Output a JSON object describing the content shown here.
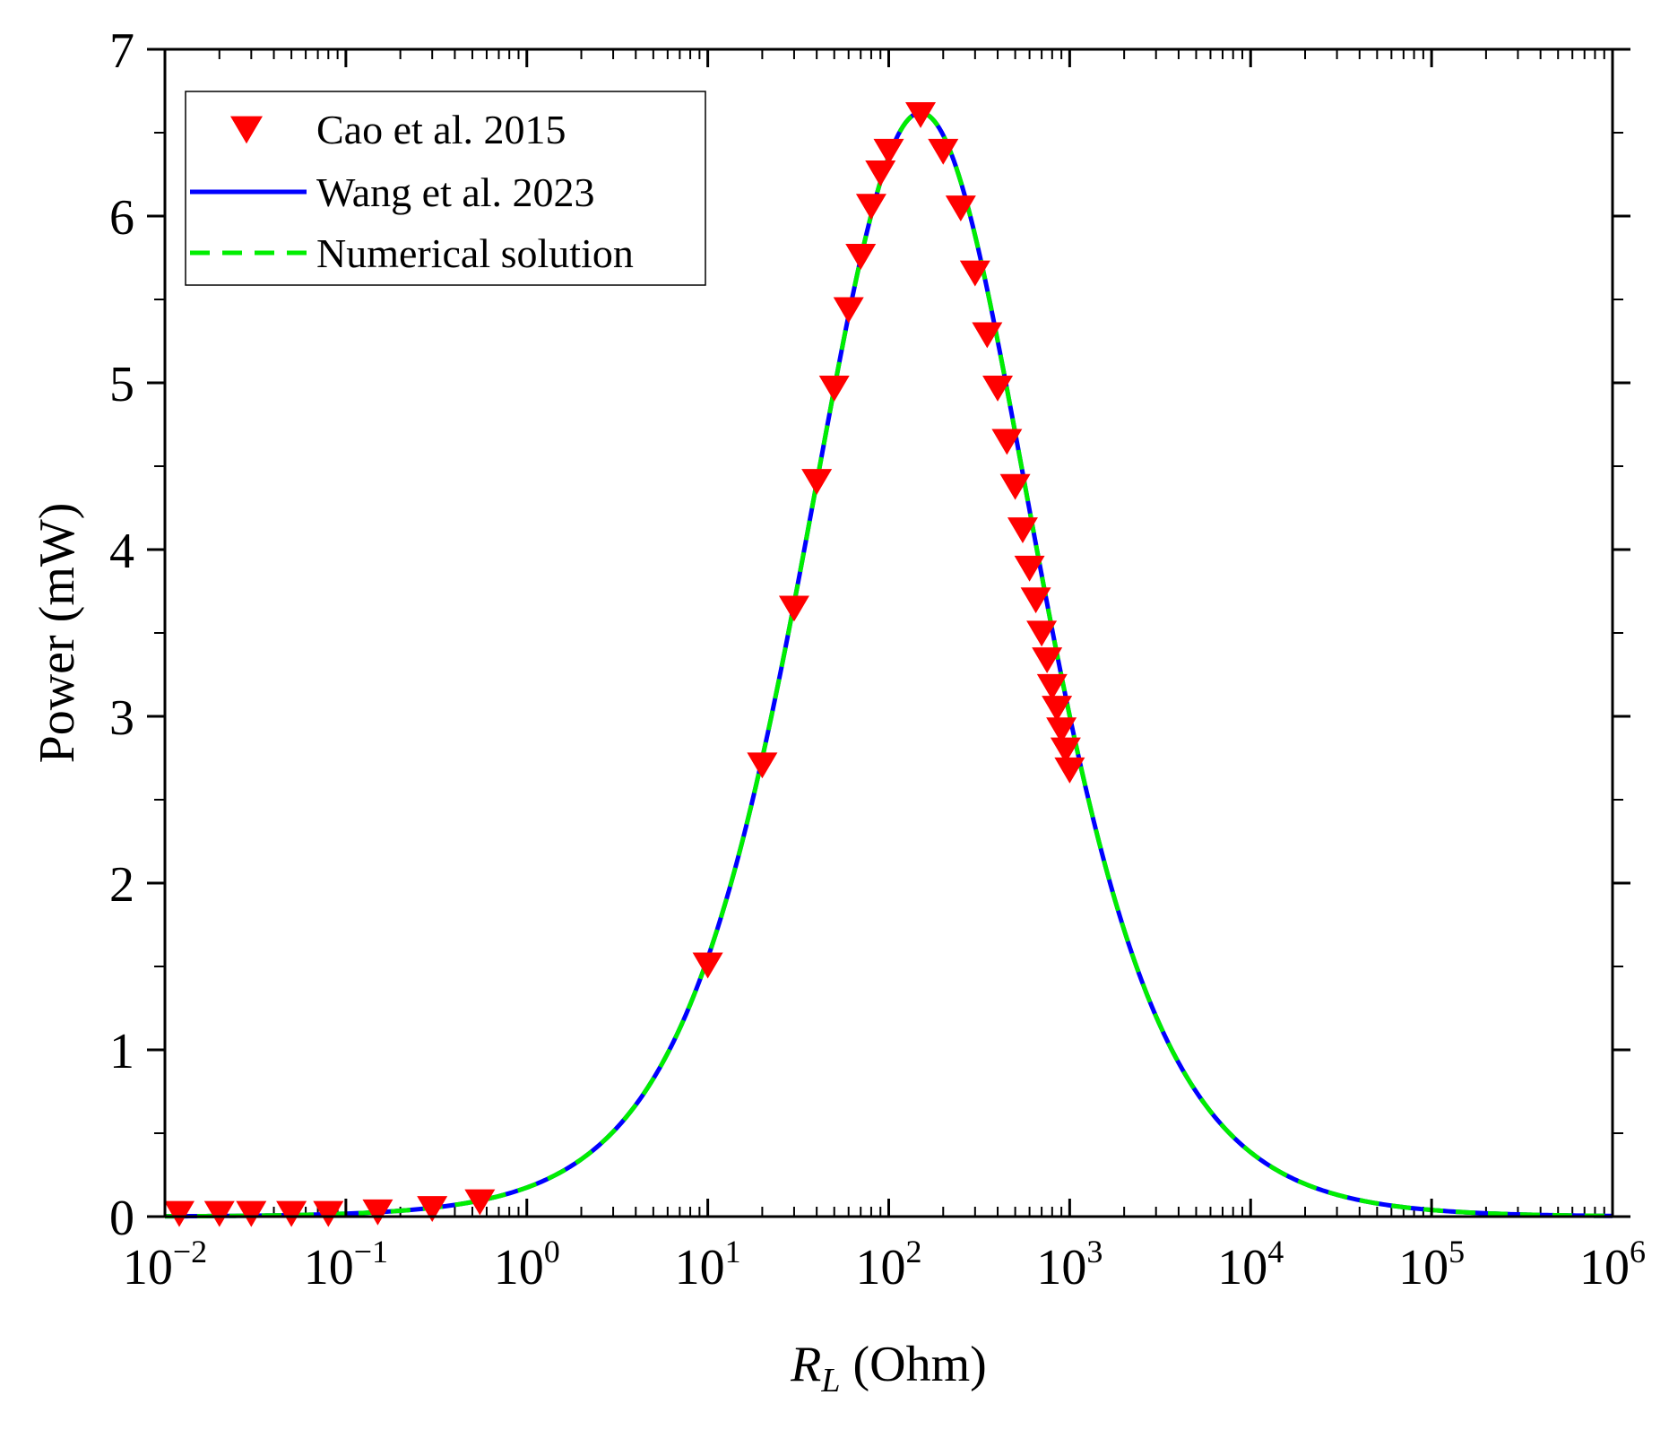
{
  "chart_data": {
    "type": "line",
    "xscale": "log",
    "xlim_exponents": [
      -2,
      6
    ],
    "ylim": [
      0,
      7
    ],
    "xlabel": {
      "main": "R",
      "subscript": "L",
      "rest": " (Ohm)"
    },
    "ylabel": "Power (mW)",
    "x_ticks": [
      {
        "base": "10",
        "exp": "−2",
        "value": 0.01
      },
      {
        "base": "10",
        "exp": "−1",
        "value": 0.1
      },
      {
        "base": "10",
        "exp": "0",
        "value": 1
      },
      {
        "base": "10",
        "exp": "1",
        "value": 10
      },
      {
        "base": "10",
        "exp": "2",
        "value": 100
      },
      {
        "base": "10",
        "exp": "3",
        "value": 1000
      },
      {
        "base": "10",
        "exp": "4",
        "value": 10000
      },
      {
        "base": "10",
        "exp": "5",
        "value": 100000
      },
      {
        "base": "10",
        "exp": "6",
        "value": 1000000
      }
    ],
    "y_ticks": [
      "0",
      "1",
      "2",
      "3",
      "4",
      "5",
      "6",
      "7"
    ],
    "legend_position": "top-left",
    "series": [
      {
        "name": "Cao et al. 2015",
        "kind": "markers",
        "marker": "triangle-down",
        "color": "#ff0000",
        "x": [
          0.012,
          0.02,
          0.03,
          0.05,
          0.08,
          0.15,
          0.3,
          0.55,
          10,
          20,
          30,
          40,
          50,
          60,
          70,
          80,
          90,
          100,
          150,
          200,
          250,
          300,
          350,
          400,
          450,
          500,
          550,
          600,
          650,
          700,
          750,
          800,
          850,
          900,
          950,
          1000
        ],
        "y": [
          0.02,
          0.02,
          0.02,
          0.02,
          0.02,
          0.03,
          0.05,
          0.09,
          1.51,
          2.71,
          3.65,
          4.41,
          4.97,
          5.44,
          5.76,
          6.06,
          6.26,
          6.39,
          6.61,
          6.39,
          6.05,
          5.66,
          5.29,
          4.97,
          4.65,
          4.38,
          4.12,
          3.89,
          3.7,
          3.5,
          3.34,
          3.18,
          3.05,
          2.92,
          2.8,
          2.68
        ]
      },
      {
        "name": "Wang et al. 2023",
        "kind": "line",
        "style": "solid",
        "color": "#0000ff"
      },
      {
        "name": "Numerical solution",
        "kind": "line",
        "style": "dashed",
        "color": "#00ee00"
      }
    ],
    "curve_model": {
      "formula": "P = Pmax * 4 * R * Ropt / (R + Ropt)^2",
      "Pmax_mW": 6.62,
      "Ropt_ohm": 150
    }
  }
}
